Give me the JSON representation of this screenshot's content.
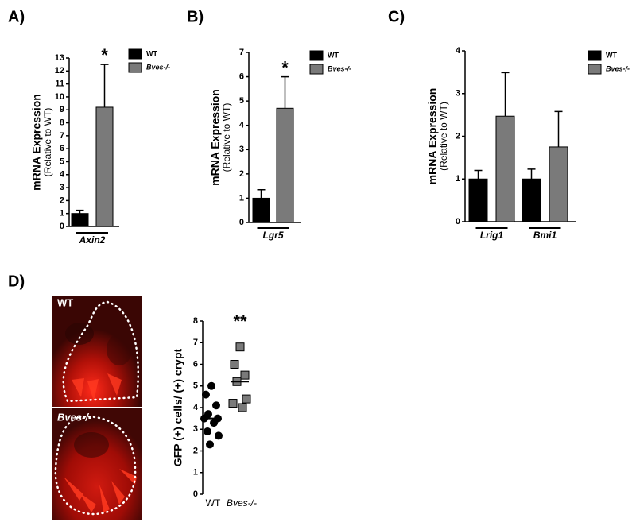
{
  "chart_data": [
    {
      "type": "bar",
      "panel_label": "A)",
      "ylabel": "mRNA Expression",
      "ylabel_sub": "(Relative to WT)",
      "categories": [
        "Axin2"
      ],
      "ylim": [
        0,
        13
      ],
      "yticks": [
        0,
        1,
        2,
        3,
        4,
        5,
        6,
        7,
        8,
        9,
        10,
        11,
        12,
        13
      ],
      "annotation": "*",
      "series": [
        {
          "name": "WT",
          "color": "#000000",
          "values": [
            1.0
          ],
          "errors": [
            0.25
          ]
        },
        {
          "name": "Bves-/-",
          "color": "#7a7a7a",
          "values": [
            9.2
          ],
          "errors": [
            3.3
          ]
        }
      ]
    },
    {
      "type": "bar",
      "panel_label": "B)",
      "ylabel": "mRNA Expression",
      "ylabel_sub": "(Relative to WT)",
      "categories": [
        "Lgr5"
      ],
      "ylim": [
        0,
        7
      ],
      "yticks": [
        0,
        1,
        2,
        3,
        4,
        5,
        6,
        7
      ],
      "annotation": "*",
      "series": [
        {
          "name": "WT",
          "color": "#000000",
          "values": [
            1.0
          ],
          "errors": [
            0.35
          ]
        },
        {
          "name": "Bves-/-",
          "color": "#7a7a7a",
          "values": [
            4.7
          ],
          "errors": [
            1.3
          ]
        }
      ]
    },
    {
      "type": "bar",
      "panel_label": "C)",
      "ylabel": "mRNA Expression",
      "ylabel_sub": "(Relative to WT)",
      "categories": [
        "Lrig1",
        "Bmi1"
      ],
      "ylim": [
        0,
        4
      ],
      "yticks": [
        0,
        1,
        2,
        3,
        4
      ],
      "series": [
        {
          "name": "WT",
          "color": "#000000",
          "values": [
            1.0,
            1.0
          ],
          "errors": [
            0.2,
            0.23
          ]
        },
        {
          "name": "Bves-/-",
          "color": "#7a7a7a",
          "values": [
            2.47,
            1.75
          ],
          "errors": [
            1.02,
            0.83
          ]
        }
      ]
    },
    {
      "type": "dot",
      "panel_label": "D)",
      "ylabel": "GFP (+) cells/ (+) crypt",
      "image_labels": [
        "WT",
        "Bves-/-"
      ],
      "ylim": [
        0,
        8
      ],
      "yticks": [
        0,
        1,
        2,
        3,
        4,
        5,
        6,
        7,
        8
      ],
      "annotation": "**",
      "groups": [
        {
          "label": "WT",
          "color": "#000000",
          "marker": "circle",
          "values": [
            5.0,
            4.6,
            4.1,
            3.7,
            3.5,
            3.5,
            3.3,
            2.9,
            2.7,
            2.3
          ],
          "mean": 3.5
        },
        {
          "label": "Bves-/-",
          "color": "#7a7a7a",
          "marker": "square",
          "values": [
            6.8,
            6.0,
            5.5,
            5.2,
            4.4,
            4.2,
            4.0
          ],
          "mean": 5.2
        }
      ]
    }
  ]
}
